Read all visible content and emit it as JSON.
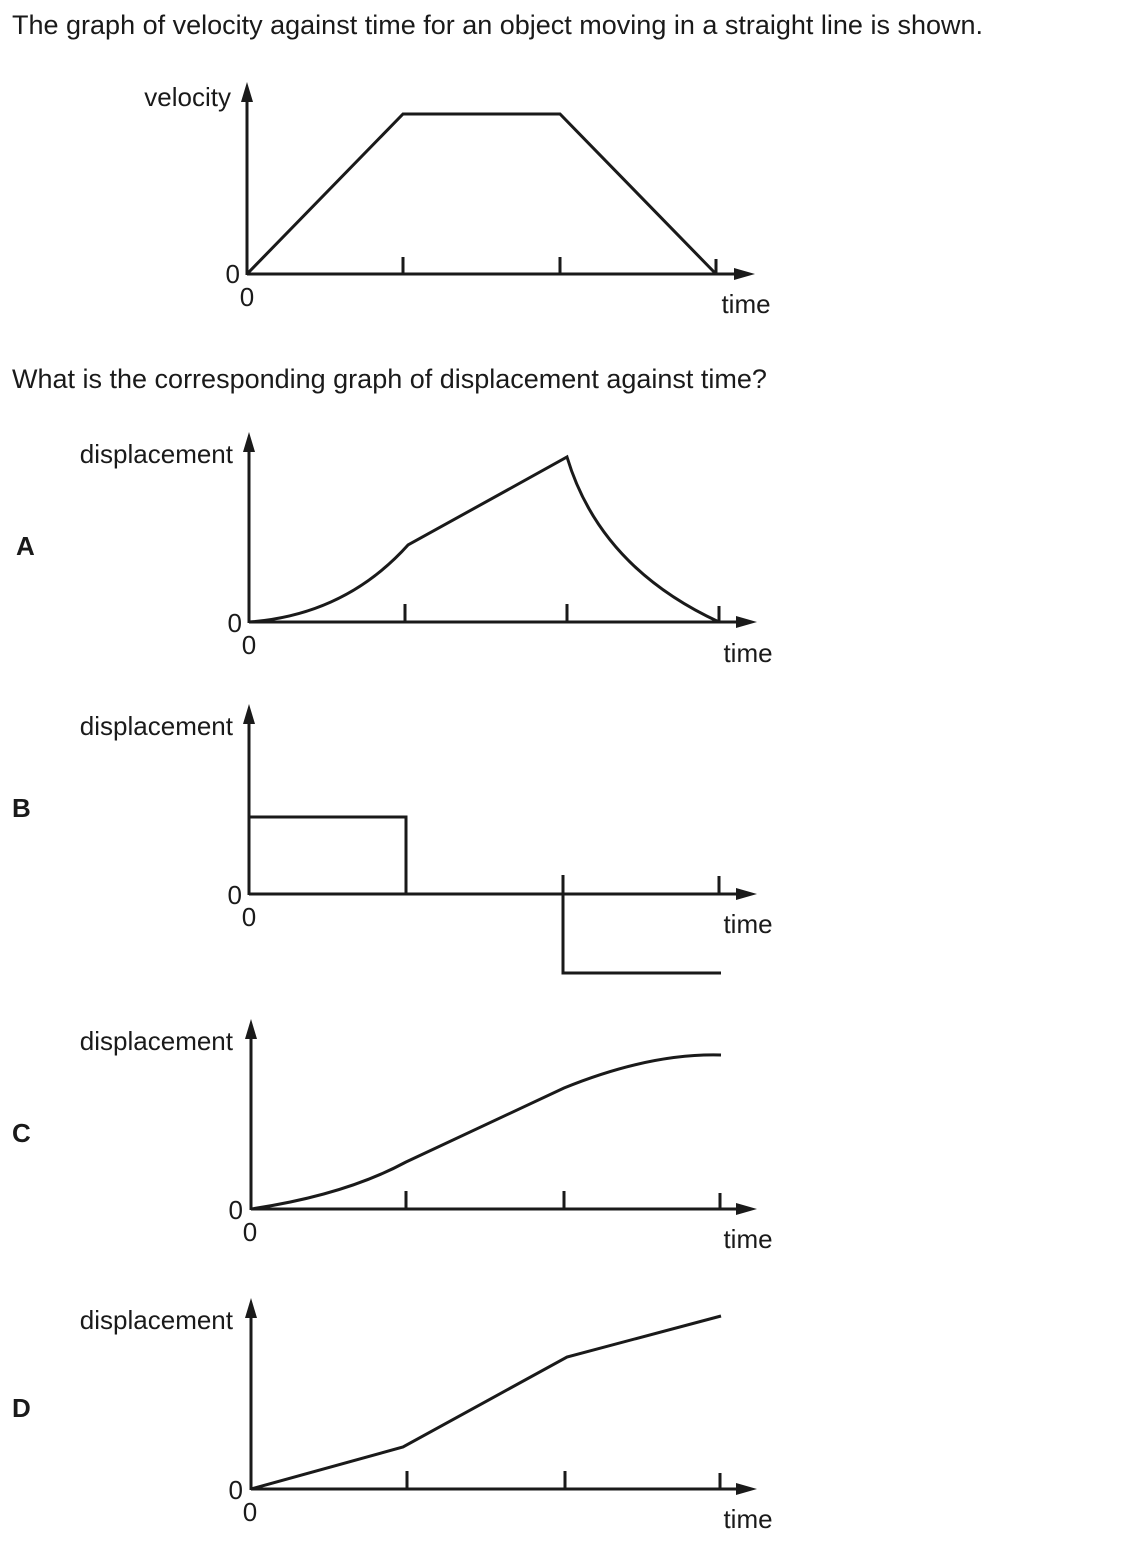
{
  "question": {
    "intro": "The graph of velocity against time for an object moving in a straight line is shown.",
    "prompt": "What is the corresponding graph of displacement against time?"
  },
  "velocity_graph": {
    "y_label": "velocity",
    "x_label": "time",
    "y_origin": "0",
    "x_origin": "0"
  },
  "options": [
    {
      "letter": "A",
      "y_label": "displacement",
      "x_label": "time",
      "y_origin": "0",
      "x_origin": "0"
    },
    {
      "letter": "B",
      "y_label": "displacement",
      "x_label": "time",
      "y_origin": "0",
      "x_origin": "0"
    },
    {
      "letter": "C",
      "y_label": "displacement",
      "x_label": "time",
      "y_origin": "0",
      "x_origin": "0"
    },
    {
      "letter": "D",
      "y_label": "displacement",
      "x_label": "time",
      "y_origin": "0",
      "x_origin": "0"
    }
  ],
  "colors": {
    "ink": "#1a1a1a"
  }
}
